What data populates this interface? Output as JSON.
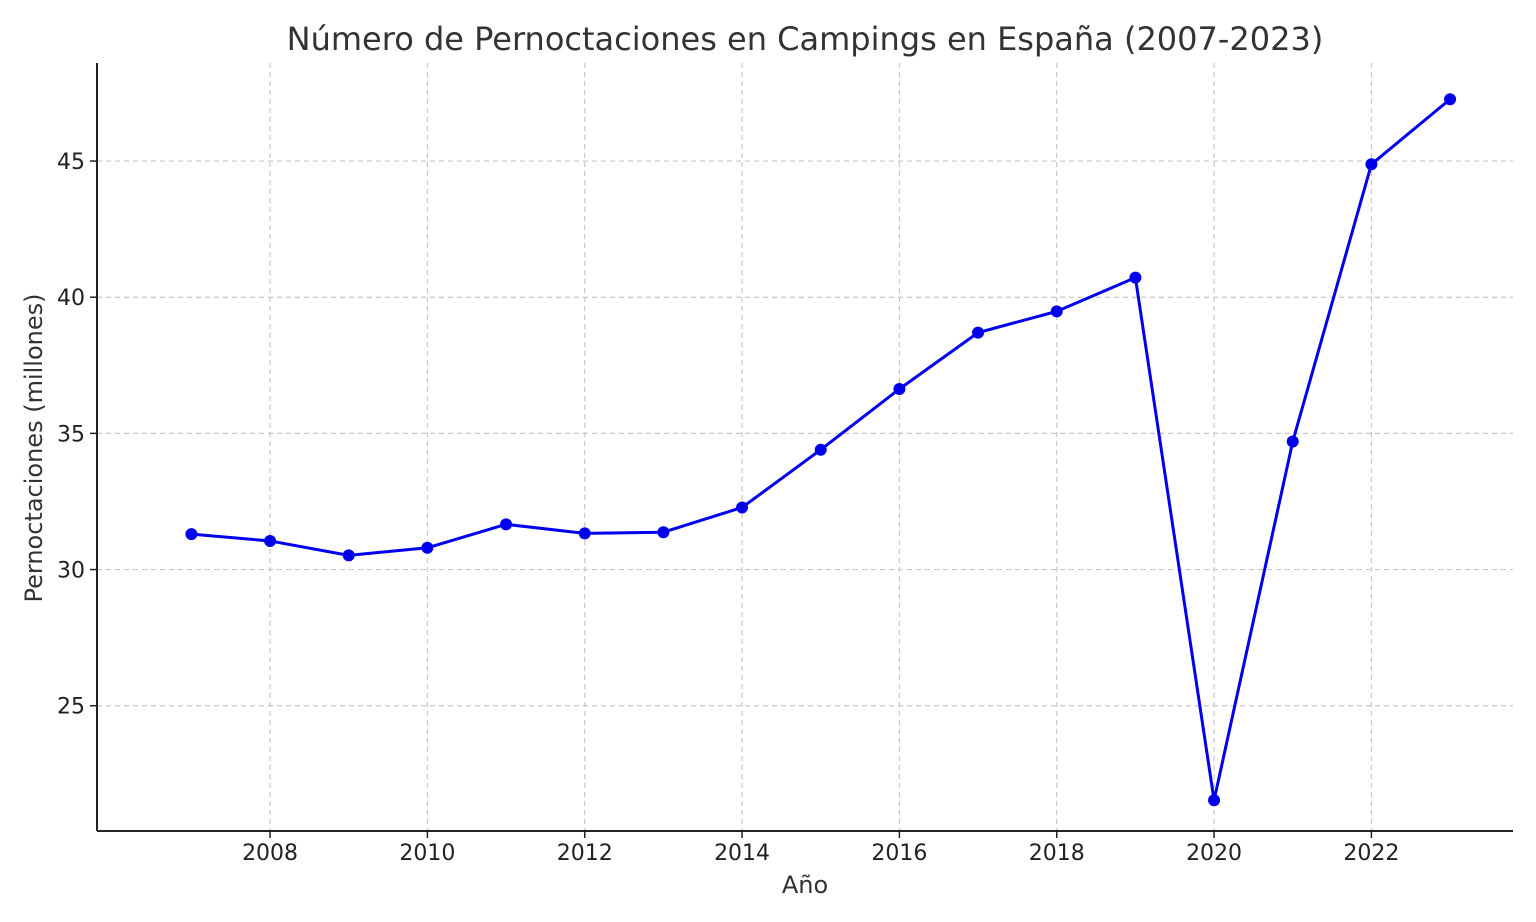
{
  "chart_data": {
    "type": "line",
    "title": "Número de Pernoctaciones en Campings en España (2007-2023)",
    "xlabel": "Año",
    "ylabel": "Pernoctaciones (millones)",
    "x": [
      2007,
      2008,
      2009,
      2010,
      2011,
      2012,
      2013,
      2014,
      2015,
      2016,
      2017,
      2018,
      2019,
      2020,
      2021,
      2022,
      2023
    ],
    "series": [
      {
        "values": [
          31.3,
          31.05,
          30.52,
          30.8,
          31.66,
          31.33,
          31.37,
          32.28,
          34.4,
          36.63,
          38.7,
          39.48,
          40.72,
          21.53,
          34.7,
          44.88,
          47.27
        ],
        "color": "#0000ee"
      }
    ],
    "xlim": [
      2005.8,
      2023.8
    ],
    "ylim": [
      20.4,
      48.6
    ],
    "xticks": [
      2008,
      2010,
      2012,
      2014,
      2016,
      2018,
      2020,
      2022
    ],
    "yticks": [
      25,
      30,
      35,
      40,
      45
    ],
    "grid": true,
    "legend": "none"
  }
}
